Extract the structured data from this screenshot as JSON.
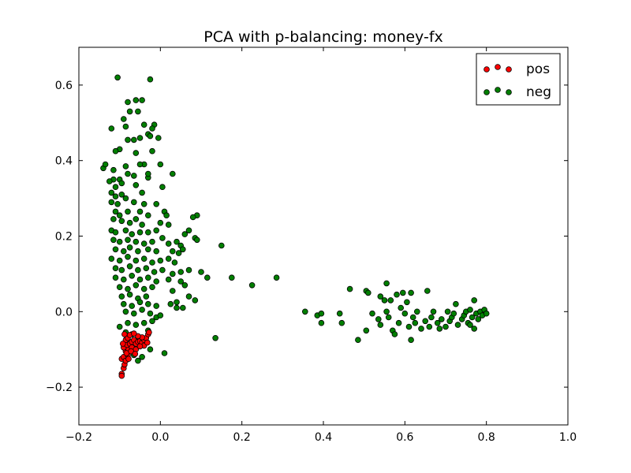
{
  "chart_data": {
    "type": "scatter",
    "title": "PCA with p-balancing: money-fx",
    "xlabel": "",
    "ylabel": "",
    "xlim": [
      -0.2,
      1.0
    ],
    "ylim": [
      -0.3,
      0.7
    ],
    "xticks": [
      "−0.2",
      "0.0",
      "0.2",
      "0.4",
      "0.6",
      "0.8",
      "1.0"
    ],
    "yticks": [
      "−0.2",
      "0.0",
      "0.2",
      "0.4",
      "0.6"
    ],
    "xtick_values": [
      -0.2,
      0.0,
      0.2,
      0.4,
      0.6,
      0.8,
      1.0
    ],
    "ytick_values": [
      -0.2,
      0.0,
      0.2,
      0.4,
      0.6
    ],
    "legend_position": "top-right",
    "grid": false,
    "series": [
      {
        "name": "pos",
        "color": "#ff0000",
        "points": [
          [
            -0.095,
            -0.165
          ],
          [
            -0.095,
            -0.17
          ],
          [
            -0.09,
            -0.15
          ],
          [
            -0.088,
            -0.14
          ],
          [
            -0.095,
            -0.125
          ],
          [
            -0.09,
            -0.12
          ],
          [
            -0.085,
            -0.13
          ],
          [
            -0.08,
            -0.115
          ],
          [
            -0.085,
            -0.105
          ],
          [
            -0.078,
            -0.1
          ],
          [
            -0.09,
            -0.095
          ],
          [
            -0.082,
            -0.088
          ],
          [
            -0.075,
            -0.085
          ],
          [
            -0.07,
            -0.08
          ],
          [
            -0.065,
            -0.075
          ],
          [
            -0.06,
            -0.085
          ],
          [
            -0.055,
            -0.08
          ],
          [
            -0.05,
            -0.078
          ],
          [
            -0.045,
            -0.082
          ],
          [
            -0.04,
            -0.075
          ],
          [
            -0.035,
            -0.07
          ],
          [
            -0.03,
            -0.06
          ],
          [
            -0.04,
            -0.09
          ],
          [
            -0.085,
            -0.075
          ],
          [
            -0.08,
            -0.07
          ],
          [
            -0.075,
            -0.062
          ],
          [
            -0.088,
            -0.06
          ],
          [
            -0.07,
            -0.095
          ],
          [
            -0.06,
            -0.1
          ],
          [
            -0.05,
            -0.092
          ],
          [
            -0.045,
            -0.068
          ],
          [
            -0.055,
            -0.065
          ],
          [
            -0.065,
            -0.058
          ],
          [
            -0.092,
            -0.085
          ],
          [
            -0.083,
            -0.11
          ],
          [
            -0.032,
            -0.082
          ],
          [
            -0.028,
            -0.055
          ],
          [
            -0.072,
            -0.105
          ],
          [
            -0.062,
            -0.112
          ],
          [
            -0.078,
            -0.125
          ]
        ]
      },
      {
        "name": "neg",
        "color": "#007f00",
        "points": [
          [
            -0.105,
            0.62
          ],
          [
            -0.025,
            0.615
          ],
          [
            -0.08,
            0.555
          ],
          [
            -0.06,
            0.56
          ],
          [
            -0.045,
            0.56
          ],
          [
            -0.075,
            0.53
          ],
          [
            -0.09,
            0.51
          ],
          [
            -0.055,
            0.53
          ],
          [
            -0.12,
            0.485
          ],
          [
            -0.015,
            0.495
          ],
          [
            -0.02,
            0.485
          ],
          [
            -0.04,
            0.495
          ],
          [
            -0.085,
            0.49
          ],
          [
            -0.065,
            0.455
          ],
          [
            -0.05,
            0.46
          ],
          [
            -0.03,
            0.47
          ],
          [
            -0.025,
            0.465
          ],
          [
            -0.005,
            0.46
          ],
          [
            -0.08,
            0.455
          ],
          [
            -0.1,
            0.43
          ],
          [
            -0.11,
            0.425
          ],
          [
            -0.06,
            0.42
          ],
          [
            -0.02,
            0.425
          ],
          [
            -0.14,
            0.38
          ],
          [
            -0.135,
            0.39
          ],
          [
            -0.115,
            0.375
          ],
          [
            -0.085,
            0.385
          ],
          [
            -0.04,
            0.39
          ],
          [
            -0.05,
            0.39
          ],
          [
            0.0,
            0.39
          ],
          [
            -0.115,
            0.35
          ],
          [
            -0.125,
            0.345
          ],
          [
            -0.1,
            0.35
          ],
          [
            -0.08,
            0.365
          ],
          [
            -0.065,
            0.36
          ],
          [
            -0.03,
            0.355
          ],
          [
            -0.03,
            0.365
          ],
          [
            0.03,
            0.365
          ],
          [
            -0.11,
            0.33
          ],
          [
            -0.095,
            0.34
          ],
          [
            -0.12,
            0.315
          ],
          [
            -0.11,
            0.305
          ],
          [
            -0.095,
            0.31
          ],
          [
            -0.085,
            0.3
          ],
          [
            0.005,
            0.33
          ],
          [
            -0.06,
            0.335
          ],
          [
            -0.045,
            0.315
          ],
          [
            -0.12,
            0.29
          ],
          [
            -0.105,
            0.285
          ],
          [
            -0.065,
            0.29
          ],
          [
            -0.04,
            0.285
          ],
          [
            -0.01,
            0.285
          ],
          [
            -0.11,
            0.265
          ],
          [
            -0.1,
            0.255
          ],
          [
            -0.08,
            0.265
          ],
          [
            -0.05,
            0.265
          ],
          [
            -0.03,
            0.255
          ],
          [
            0.01,
            0.265
          ],
          [
            0.015,
            0.255
          ],
          [
            0.09,
            0.255
          ],
          [
            0.08,
            0.25
          ],
          [
            -0.115,
            0.245
          ],
          [
            -0.095,
            0.24
          ],
          [
            -0.075,
            0.235
          ],
          [
            -0.06,
            0.245
          ],
          [
            -0.045,
            0.23
          ],
          [
            0.0,
            0.235
          ],
          [
            0.02,
            0.23
          ],
          [
            -0.12,
            0.215
          ],
          [
            -0.11,
            0.21
          ],
          [
            -0.085,
            0.215
          ],
          [
            -0.07,
            0.205
          ],
          [
            -0.05,
            0.21
          ],
          [
            -0.03,
            0.21
          ],
          [
            -0.01,
            0.215
          ],
          [
            0.07,
            0.215
          ],
          [
            0.06,
            0.205
          ],
          [
            0.085,
            0.195
          ],
          [
            0.09,
            0.19
          ],
          [
            -0.115,
            0.19
          ],
          [
            -0.1,
            0.185
          ],
          [
            -0.08,
            0.19
          ],
          [
            -0.06,
            0.185
          ],
          [
            -0.04,
            0.18
          ],
          [
            -0.02,
            0.185
          ],
          [
            0.005,
            0.195
          ],
          [
            0.02,
            0.18
          ],
          [
            0.04,
            0.185
          ],
          [
            0.05,
            0.175
          ],
          [
            0.055,
            0.165
          ],
          [
            0.15,
            0.175
          ],
          [
            -0.11,
            0.165
          ],
          [
            -0.09,
            0.16
          ],
          [
            -0.075,
            0.17
          ],
          [
            -0.055,
            0.16
          ],
          [
            -0.03,
            0.165
          ],
          [
            -0.01,
            0.16
          ],
          [
            0.03,
            0.16
          ],
          [
            0.045,
            0.155
          ],
          [
            -0.12,
            0.14
          ],
          [
            -0.1,
            0.135
          ],
          [
            -0.08,
            0.145
          ],
          [
            -0.06,
            0.135
          ],
          [
            -0.04,
            0.14
          ],
          [
            -0.02,
            0.13
          ],
          [
            0.0,
            0.135
          ],
          [
            0.02,
            0.14
          ],
          [
            0.035,
            0.13
          ],
          [
            -0.11,
            0.115
          ],
          [
            -0.095,
            0.11
          ],
          [
            -0.075,
            0.12
          ],
          [
            -0.055,
            0.11
          ],
          [
            -0.035,
            0.115
          ],
          [
            -0.015,
            0.105
          ],
          [
            0.005,
            0.11
          ],
          [
            0.03,
            0.1
          ],
          [
            0.05,
            0.105
          ],
          [
            0.07,
            0.11
          ],
          [
            0.1,
            0.105
          ],
          [
            0.115,
            0.09
          ],
          [
            0.175,
            0.09
          ],
          [
            0.225,
            0.07
          ],
          [
            0.285,
            0.09
          ],
          [
            -0.11,
            0.09
          ],
          [
            -0.09,
            0.085
          ],
          [
            -0.07,
            0.095
          ],
          [
            -0.05,
            0.085
          ],
          [
            -0.03,
            0.09
          ],
          [
            -0.01,
            0.08
          ],
          [
            0.02,
            0.085
          ],
          [
            0.05,
            0.08
          ],
          [
            0.06,
            0.07
          ],
          [
            -0.1,
            0.065
          ],
          [
            -0.08,
            0.06
          ],
          [
            -0.06,
            0.07
          ],
          [
            -0.04,
            0.06
          ],
          [
            -0.02,
            0.065
          ],
          [
            0.03,
            0.055
          ],
          [
            -0.095,
            0.04
          ],
          [
            -0.075,
            0.045
          ],
          [
            -0.055,
            0.035
          ],
          [
            -0.035,
            0.04
          ],
          [
            0.07,
            0.04
          ],
          [
            0.085,
            0.03
          ],
          [
            -0.09,
            0.02
          ],
          [
            -0.07,
            0.015
          ],
          [
            -0.05,
            0.025
          ],
          [
            -0.03,
            0.02
          ],
          [
            -0.01,
            0.015
          ],
          [
            0.025,
            0.02
          ],
          [
            0.04,
            0.01
          ],
          [
            0.055,
            0.01
          ],
          [
            0.04,
            0.025
          ],
          [
            -0.085,
            0.0
          ],
          [
            -0.065,
            -0.005
          ],
          [
            -0.045,
            0.005
          ],
          [
            -0.025,
            -0.005
          ],
          [
            -0.01,
            -0.015
          ],
          [
            0.0,
            -0.01
          ],
          [
            -0.1,
            -0.04
          ],
          [
            -0.08,
            -0.03
          ],
          [
            -0.06,
            -0.035
          ],
          [
            -0.04,
            -0.03
          ],
          [
            -0.02,
            -0.025
          ],
          [
            -0.085,
            -0.055
          ],
          [
            -0.07,
            -0.06
          ],
          [
            -0.03,
            -0.05
          ],
          [
            -0.025,
            -0.1
          ],
          [
            -0.045,
            -0.12
          ],
          [
            -0.055,
            -0.13
          ],
          [
            -0.065,
            -0.115
          ],
          [
            0.01,
            -0.11
          ],
          [
            0.135,
            -0.07
          ],
          [
            0.355,
            0.0
          ],
          [
            0.385,
            -0.01
          ],
          [
            0.395,
            -0.005
          ],
          [
            0.395,
            -0.03
          ],
          [
            0.44,
            -0.005
          ],
          [
            0.445,
            -0.03
          ],
          [
            0.465,
            0.06
          ],
          [
            0.485,
            -0.075
          ],
          [
            0.505,
            -0.05
          ],
          [
            0.505,
            0.055
          ],
          [
            0.51,
            0.05
          ],
          [
            0.52,
            -0.005
          ],
          [
            0.535,
            -0.02
          ],
          [
            0.54,
            -0.035
          ],
          [
            0.54,
            0.04
          ],
          [
            0.55,
            0.03
          ],
          [
            0.555,
            0.0
          ],
          [
            0.56,
            -0.015
          ],
          [
            0.555,
            0.075
          ],
          [
            0.565,
            0.03
          ],
          [
            0.57,
            -0.05
          ],
          [
            0.575,
            -0.06
          ],
          [
            0.585,
            -0.03
          ],
          [
            0.58,
            0.045
          ],
          [
            0.59,
            0.01
          ],
          [
            0.595,
            0.05
          ],
          [
            0.6,
            -0.005
          ],
          [
            0.605,
            0.025
          ],
          [
            0.61,
            -0.04
          ],
          [
            0.615,
            -0.075
          ],
          [
            0.615,
            0.05
          ],
          [
            0.62,
            -0.015
          ],
          [
            0.625,
            -0.03
          ],
          [
            0.63,
            0.0
          ],
          [
            0.64,
            -0.045
          ],
          [
            0.65,
            -0.025
          ],
          [
            0.655,
            0.055
          ],
          [
            0.66,
            -0.04
          ],
          [
            0.665,
            -0.015
          ],
          [
            0.67,
            0.0
          ],
          [
            0.68,
            -0.03
          ],
          [
            0.685,
            -0.045
          ],
          [
            0.69,
            -0.02
          ],
          [
            0.7,
            -0.04
          ],
          [
            0.705,
            0.0
          ],
          [
            0.71,
            -0.025
          ],
          [
            0.715,
            -0.015
          ],
          [
            0.72,
            -0.005
          ],
          [
            0.725,
            0.02
          ],
          [
            0.73,
            -0.035
          ],
          [
            0.74,
            -0.02
          ],
          [
            0.745,
            -0.01
          ],
          [
            0.75,
            0.0
          ],
          [
            0.755,
            -0.03
          ],
          [
            0.76,
            0.005
          ],
          [
            0.765,
            -0.015
          ],
          [
            0.77,
            0.03
          ],
          [
            0.775,
            -0.005
          ],
          [
            0.78,
            -0.02
          ],
          [
            0.785,
            0.0
          ],
          [
            0.79,
            -0.01
          ],
          [
            0.795,
            0.005
          ],
          [
            0.8,
            -0.005
          ],
          [
            0.76,
            -0.035
          ],
          [
            0.77,
            -0.045
          ]
        ]
      }
    ]
  }
}
